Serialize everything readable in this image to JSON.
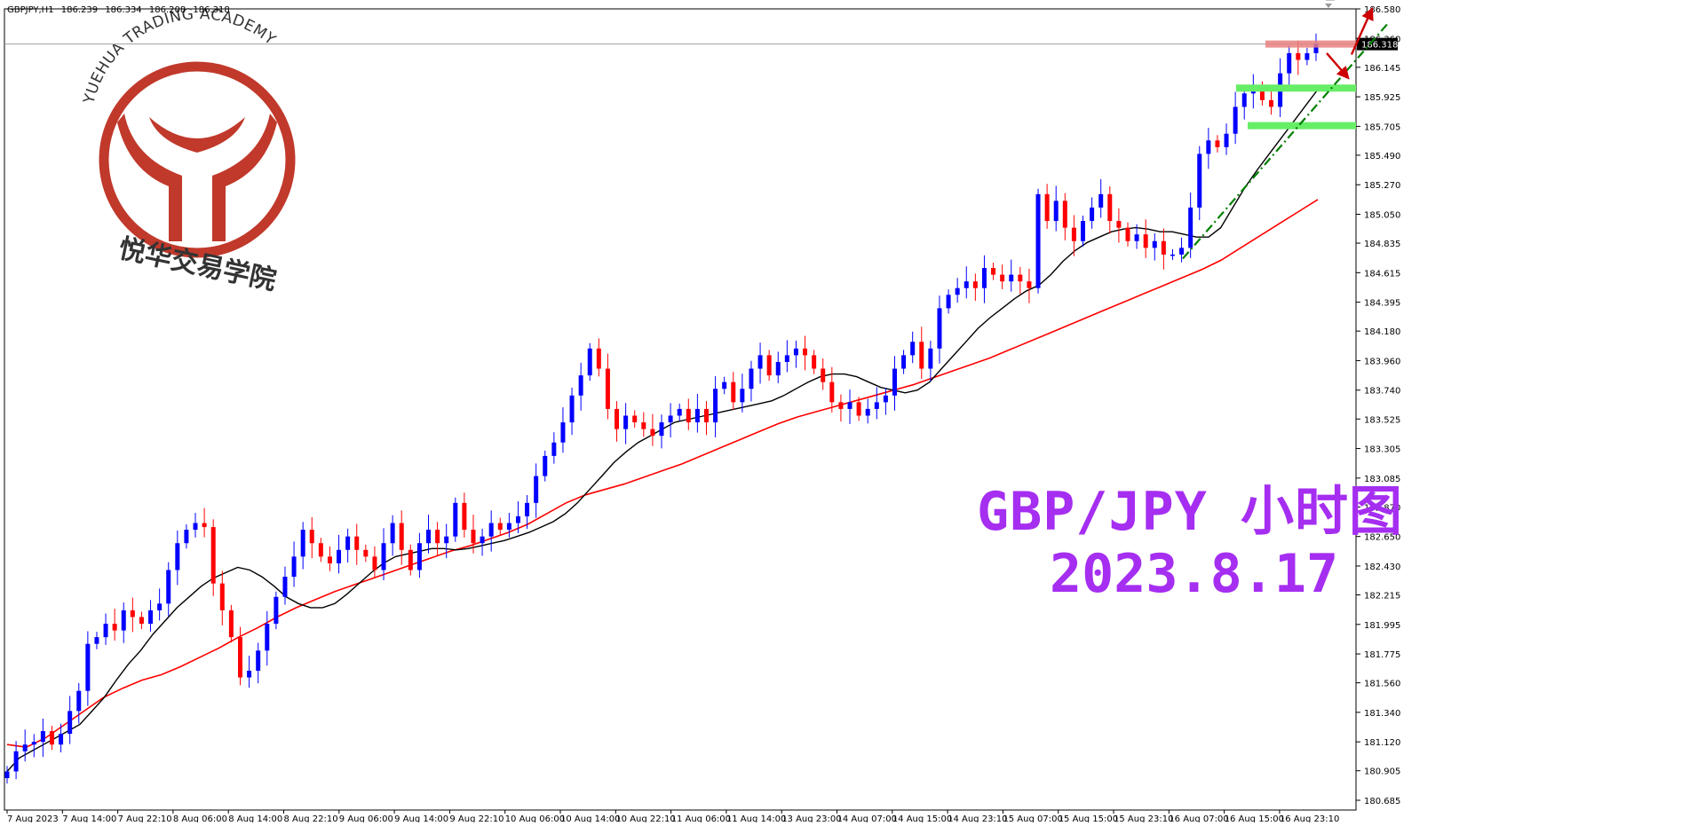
{
  "header": {
    "symbol": "GBPJPY,H1",
    "ohlc": [
      "186.239",
      "186.334",
      "186.208",
      "186.318"
    ]
  },
  "watermark": {
    "brand_en": "YUEHUA TRADING ACADEMY",
    "brand_cn": "悦华交易学院",
    "color": "#c0392b"
  },
  "annotation": {
    "title": "GBP/JPY 小时图",
    "date": "2023.8.17",
    "color": "#a52ef1"
  },
  "chart_data": {
    "type": "candlestick",
    "y_axis_ticks": [
      "186.580",
      "186.360",
      "186.145",
      "185.925",
      "185.705",
      "185.490",
      "185.270",
      "185.050",
      "184.835",
      "184.615",
      "184.395",
      "184.180",
      "183.960",
      "183.740",
      "183.525",
      "183.305",
      "183.085",
      "182.870",
      "182.650",
      "182.430",
      "182.215",
      "181.995",
      "181.775",
      "181.560",
      "181.340",
      "181.120",
      "180.905",
      "180.685"
    ],
    "ylim": [
      180.685,
      186.58
    ],
    "x_axis_ticks": [
      "7 Aug 2023",
      "7 Aug 14:00",
      "7 Aug 22:10",
      "8 Aug 06:00",
      "8 Aug 14:00",
      "8 Aug 22:10",
      "9 Aug 06:00",
      "9 Aug 14:00",
      "9 Aug 22:10",
      "10 Aug 06:00",
      "10 Aug 14:00",
      "10 Aug 22:10",
      "11 Aug 06:00",
      "11 Aug 14:00",
      "13 Aug 23:00",
      "14 Aug 07:00",
      "14 Aug 15:00",
      "14 Aug 23:10",
      "15 Aug 07:00",
      "15 Aug 15:00",
      "15 Aug 23:10",
      "16 Aug 07:00",
      "16 Aug 15:00",
      "16 Aug 23:10"
    ],
    "current_price": "186.318",
    "colors": {
      "bull": "#0000ff",
      "bear": "#ff0000",
      "ma_fast": "#000000",
      "ma_slow": "#ff0000",
      "resistance": "#e88080",
      "support": "#66ee66",
      "trendline": "#008000",
      "arrow": "#cc0000"
    },
    "closes": [
      180.9,
      181.05,
      181.1,
      181.12,
      181.2,
      181.1,
      181.18,
      181.35,
      181.5,
      181.85,
      181.9,
      182.0,
      181.95,
      182.1,
      182.05,
      182.0,
      182.1,
      182.15,
      182.4,
      182.6,
      182.7,
      182.75,
      182.72,
      182.3,
      182.1,
      181.9,
      181.6,
      181.65,
      181.8,
      182.0,
      182.2,
      182.35,
      182.5,
      182.7,
      182.6,
      182.5,
      182.45,
      182.55,
      182.65,
      182.55,
      182.5,
      182.4,
      182.6,
      182.75,
      182.55,
      182.4,
      182.6,
      182.7,
      182.6,
      182.65,
      182.9,
      182.7,
      182.6,
      182.65,
      182.75,
      182.7,
      182.75,
      182.8,
      182.9,
      183.1,
      183.25,
      183.35,
      183.5,
      183.7,
      183.85,
      184.05,
      183.9,
      183.6,
      183.45,
      183.55,
      183.5,
      183.45,
      183.4,
      183.5,
      183.55,
      183.6,
      183.5,
      183.6,
      183.5,
      183.75,
      183.8,
      183.65,
      183.75,
      183.9,
      184.0,
      183.85,
      183.95,
      184.0,
      184.05,
      184.0,
      183.9,
      183.8,
      183.65,
      183.6,
      183.65,
      183.55,
      183.6,
      183.65,
      183.7,
      183.9,
      184.0,
      184.1,
      183.9,
      184.05,
      184.35,
      184.45,
      184.5,
      184.55,
      184.5,
      184.65,
      184.6,
      184.55,
      184.6,
      184.55,
      184.5,
      185.2,
      185.0,
      185.15,
      184.95,
      184.85,
      185.0,
      185.1,
      185.2,
      185.0,
      184.95,
      184.85,
      184.9,
      184.8,
      184.85,
      184.75,
      184.75,
      184.8,
      185.1,
      185.5,
      185.6,
      185.55,
      185.65,
      185.85,
      185.95,
      186.0,
      185.9,
      185.85,
      186.1,
      186.25,
      186.2,
      186.25,
      186.32
    ],
    "ma_fast_values": [
      180.9,
      181.0,
      181.05,
      181.1,
      181.15,
      181.2,
      181.25,
      181.35,
      181.45,
      181.58,
      181.7,
      181.8,
      181.92,
      182.02,
      182.12,
      182.2,
      182.28,
      182.34,
      182.38,
      182.42,
      182.4,
      182.35,
      182.28,
      182.2,
      182.15,
      182.12,
      182.12,
      182.15,
      182.22,
      182.3,
      182.38,
      182.45,
      182.5,
      182.52,
      182.54,
      182.56,
      182.56,
      182.55,
      182.56,
      182.58,
      182.6,
      182.62,
      182.65,
      182.68,
      182.72,
      182.76,
      182.82,
      182.9,
      183.0,
      183.1,
      183.2,
      183.28,
      183.35,
      183.4,
      183.45,
      183.5,
      183.52,
      183.54,
      183.56,
      183.58,
      183.6,
      183.62,
      183.64,
      183.66,
      183.7,
      183.75,
      183.8,
      183.84,
      183.86,
      183.86,
      183.84,
      183.8,
      183.76,
      183.74,
      183.72,
      183.74,
      183.8,
      183.9,
      184.0,
      184.1,
      184.2,
      184.28,
      184.35,
      184.42,
      184.48,
      184.52,
      184.6,
      184.7,
      184.78,
      184.84,
      184.88,
      184.92,
      184.94,
      184.95,
      184.94,
      184.92,
      184.92,
      184.9,
      184.88,
      184.88,
      184.95,
      185.1,
      185.25,
      185.38,
      185.5,
      185.62,
      185.74,
      185.86,
      185.98
    ],
    "ma_slow_values": [
      181.1,
      181.08,
      181.15,
      181.25,
      181.35,
      181.45,
      181.52,
      181.58,
      181.62,
      181.68,
      181.75,
      181.82,
      181.9,
      181.97,
      182.05,
      182.12,
      182.18,
      182.24,
      182.29,
      182.34,
      182.39,
      182.44,
      182.49,
      182.54,
      182.58,
      182.63,
      182.68,
      182.74,
      182.82,
      182.9,
      182.96,
      183.0,
      183.04,
      183.09,
      183.14,
      183.19,
      183.25,
      183.31,
      183.37,
      183.43,
      183.49,
      183.54,
      183.58,
      183.62,
      183.66,
      183.7,
      183.74,
      183.78,
      183.83,
      183.88,
      183.93,
      183.98,
      184.04,
      184.1,
      184.16,
      184.22,
      184.28,
      184.34,
      184.4,
      184.46,
      184.52,
      184.58,
      184.64,
      184.71,
      184.8,
      184.89,
      184.98,
      185.07,
      185.16
    ]
  }
}
